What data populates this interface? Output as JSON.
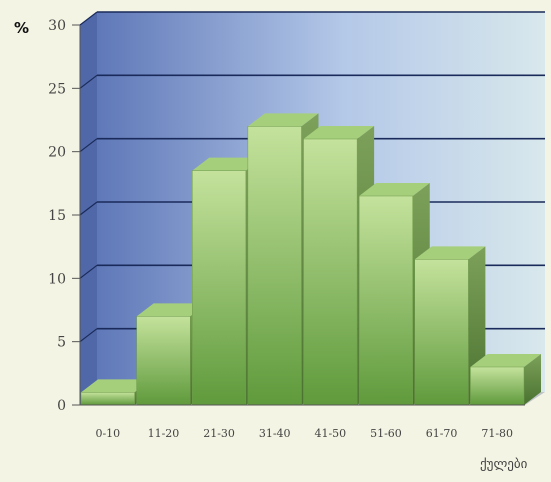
{
  "chart_data": {
    "type": "bar",
    "categories": [
      "0-10",
      "11-20",
      "21-30",
      "31-40",
      "41-50",
      "51-60",
      "61-70",
      "71-80"
    ],
    "values": [
      1,
      7,
      18.5,
      22,
      21,
      16.5,
      11.5,
      3
    ],
    "ylabel": "%",
    "xlabel": "ქულები",
    "ylim": [
      0,
      30
    ],
    "yticks": [
      "0",
      "5",
      "10",
      "15",
      "20",
      "25",
      "30"
    ],
    "grid": true,
    "legend": "none",
    "style": "3d",
    "colors": {
      "bar_front": "#8fbf63",
      "bar_top": "#a6cf7c",
      "bar_side": "#5f8a3d",
      "wall_left": "#5f78b8",
      "wall_right": "#d4e4ee",
      "side_wall": "#5068a8",
      "floor": "#bfc4c8",
      "gridline": "#1a2a5a"
    }
  }
}
